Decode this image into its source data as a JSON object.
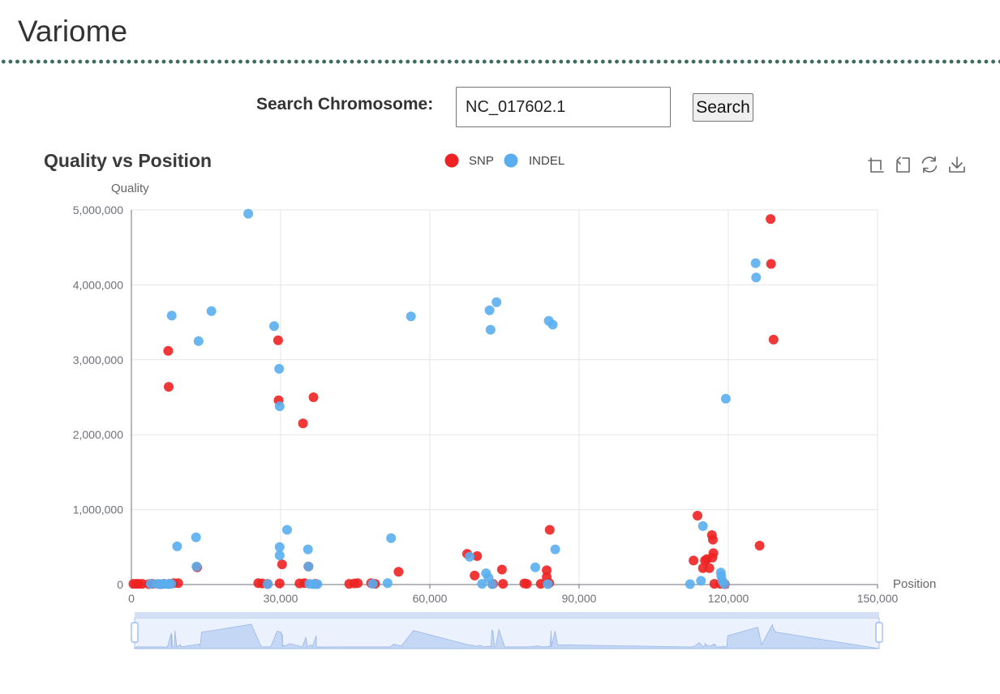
{
  "app": {
    "title": "Variome"
  },
  "search": {
    "label": "Search Chromosome:",
    "value": "NC_017602.1",
    "button_label": "Search"
  },
  "toolbox": [
    "zoom-icon",
    "zoom-reset-icon",
    "restore-icon",
    "download-icon"
  ],
  "chart_data": {
    "type": "scatter",
    "title": "Quality vs Position",
    "xlabel": "Position",
    "ylabel": "Quality",
    "xlim": [
      0,
      150000
    ],
    "ylim": [
      0,
      5000000
    ],
    "xticks": [
      0,
      30000,
      60000,
      90000,
      120000,
      150000
    ],
    "yticks": [
      0,
      1000000,
      2000000,
      3000000,
      4000000,
      5000000
    ],
    "grid": true,
    "legend": "top-center",
    "colors": {
      "SNP": "#ee2222",
      "INDEL": "#5aaef0"
    },
    "series": [
      {
        "name": "SNP",
        "points": [
          [
            400,
            10000
          ],
          [
            1000,
            10000
          ],
          [
            1500,
            10000
          ],
          [
            2200,
            10000
          ],
          [
            3500,
            5000
          ],
          [
            4200,
            10000
          ],
          [
            5800,
            5000
          ],
          [
            6500,
            10000
          ],
          [
            7600,
            10000
          ],
          [
            8500,
            20000
          ],
          [
            9400,
            20000
          ],
          [
            7400,
            3120000
          ],
          [
            7500,
            2640000
          ],
          [
            13200,
            230000
          ],
          [
            25500,
            20000
          ],
          [
            26300,
            15000
          ],
          [
            27400,
            10000
          ],
          [
            29500,
            3260000
          ],
          [
            29600,
            2460000
          ],
          [
            30300,
            270000
          ],
          [
            29800,
            15000
          ],
          [
            33800,
            15000
          ],
          [
            34500,
            2150000
          ],
          [
            34800,
            20000
          ],
          [
            35600,
            240000
          ],
          [
            36600,
            2500000
          ],
          [
            37000,
            10000
          ],
          [
            43800,
            10000
          ],
          [
            44800,
            15000
          ],
          [
            45500,
            20000
          ],
          [
            48200,
            20000
          ],
          [
            49000,
            10000
          ],
          [
            53700,
            170000
          ],
          [
            67500,
            410000
          ],
          [
            69500,
            380000
          ],
          [
            69000,
            120000
          ],
          [
            72700,
            10000
          ],
          [
            74500,
            200000
          ],
          [
            74700,
            10000
          ],
          [
            79000,
            15000
          ],
          [
            79500,
            10000
          ],
          [
            82300,
            10000
          ],
          [
            83500,
            100000
          ],
          [
            83500,
            190000
          ],
          [
            84100,
            730000
          ],
          [
            84000,
            20000
          ],
          [
            113000,
            320000
          ],
          [
            113800,
            920000
          ],
          [
            114900,
            220000
          ],
          [
            115300,
            320000
          ],
          [
            115700,
            340000
          ],
          [
            116200,
            220000
          ],
          [
            116700,
            660000
          ],
          [
            116900,
            600000
          ],
          [
            117000,
            420000
          ],
          [
            116800,
            360000
          ],
          [
            117200,
            10000
          ],
          [
            118400,
            10000
          ],
          [
            119300,
            5000
          ],
          [
            126300,
            520000
          ],
          [
            128500,
            4880000
          ],
          [
            128600,
            4280000
          ],
          [
            129100,
            3270000
          ]
        ]
      },
      {
        "name": "INDEL",
        "points": [
          [
            3900,
            10000
          ],
          [
            5200,
            10000
          ],
          [
            6000,
            5000
          ],
          [
            6600,
            10000
          ],
          [
            7400,
            5000
          ],
          [
            8000,
            10000
          ],
          [
            8100,
            3590000
          ],
          [
            9200,
            510000
          ],
          [
            13000,
            630000
          ],
          [
            13100,
            240000
          ],
          [
            13500,
            3250000
          ],
          [
            16100,
            3650000
          ],
          [
            23500,
            4950000
          ],
          [
            27400,
            5000
          ],
          [
            28700,
            3450000
          ],
          [
            29700,
            2880000
          ],
          [
            29800,
            2380000
          ],
          [
            29800,
            500000
          ],
          [
            29800,
            390000
          ],
          [
            31300,
            730000
          ],
          [
            35500,
            470000
          ],
          [
            35600,
            240000
          ],
          [
            35800,
            10000
          ],
          [
            36600,
            5000
          ],
          [
            37400,
            5000
          ],
          [
            48500,
            10000
          ],
          [
            51500,
            20000
          ],
          [
            52200,
            620000
          ],
          [
            56200,
            3580000
          ],
          [
            68000,
            370000
          ],
          [
            70500,
            10000
          ],
          [
            71300,
            150000
          ],
          [
            71800,
            90000
          ],
          [
            72000,
            3660000
          ],
          [
            72200,
            3400000
          ],
          [
            72500,
            5000
          ],
          [
            73400,
            3770000
          ],
          [
            81200,
            230000
          ],
          [
            83900,
            3520000
          ],
          [
            83700,
            5000
          ],
          [
            84700,
            3470000
          ],
          [
            85200,
            470000
          ],
          [
            112300,
            5000
          ],
          [
            114500,
            50000
          ],
          [
            114900,
            780000
          ],
          [
            118500,
            160000
          ],
          [
            118600,
            110000
          ],
          [
            118800,
            50000
          ],
          [
            119200,
            10000
          ],
          [
            119500,
            2480000
          ],
          [
            125500,
            4290000
          ],
          [
            125600,
            4100000
          ]
        ]
      }
    ]
  }
}
